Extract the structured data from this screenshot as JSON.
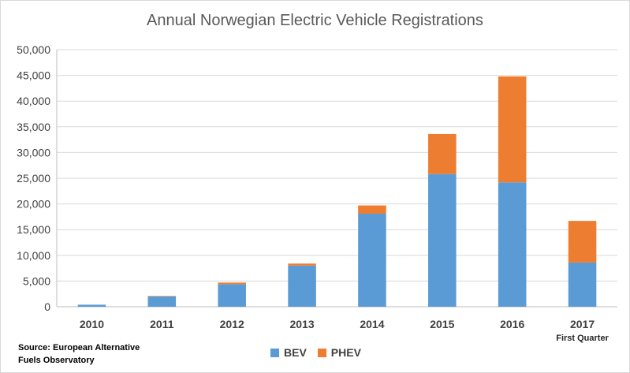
{
  "chart_data": {
    "type": "bar",
    "stacked": true,
    "title": "Annual Norwegian Electric Vehicle Registrations",
    "categories": [
      "2010",
      "2011",
      "2012",
      "2013",
      "2014",
      "2015",
      "2016",
      "2017"
    ],
    "category_notes": [
      "",
      "",
      "",
      "",
      "",
      "",
      "",
      "First Quarter"
    ],
    "series": [
      {
        "name": "BEV",
        "color": "#5b9bd5",
        "values": [
          400,
          2000,
          4400,
          8000,
          18100,
          25800,
          24200,
          8600
        ]
      },
      {
        "name": "PHEV",
        "color": "#ed7d31",
        "values": [
          0,
          100,
          300,
          400,
          1600,
          7800,
          20600,
          8100
        ]
      }
    ],
    "ylim": [
      0,
      50000
    ],
    "yticks": [
      "0",
      "5,000",
      "10,000",
      "15,000",
      "20,000",
      "25,000",
      "30,000",
      "35,000",
      "40,000",
      "45,000",
      "50,000"
    ],
    "ytick_step": 5000,
    "grid": true,
    "legend_position": "bottom",
    "source": "Source: European Alternative Fuels Observatory"
  },
  "source_lines": [
    "Source: European Alternative",
    "Fuels Observatory"
  ]
}
